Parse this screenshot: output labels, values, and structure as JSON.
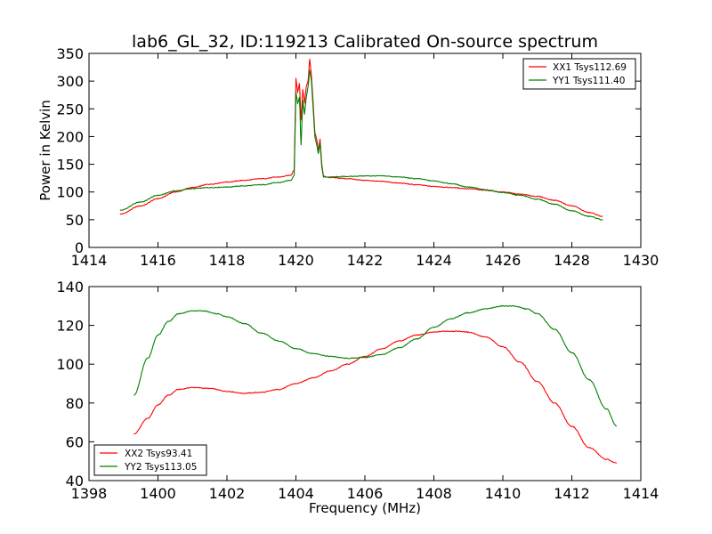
{
  "colors": {
    "red": "#ff0000",
    "green": "#008000",
    "frame": "#000000",
    "background": "#ffffff"
  },
  "chart_data": [
    {
      "type": "line",
      "title": "lab6_GL_32, ID:119213 Calibrated On-source spectrum",
      "xlabel": "",
      "ylabel": "Power in Kelvin",
      "xlim": [
        1414,
        1430
      ],
      "ylim": [
        0,
        350
      ],
      "xticks": [
        1414,
        1416,
        1418,
        1420,
        1422,
        1424,
        1426,
        1428,
        1430
      ],
      "yticks": [
        0,
        50,
        100,
        150,
        200,
        250,
        300,
        350
      ],
      "grid": false,
      "legend_position": "top-right",
      "series": [
        {
          "name": "XX1 Tsys112.69",
          "color": "#ff0000",
          "x": [
            1414.9,
            1415.5,
            1416.0,
            1416.5,
            1417.0,
            1417.5,
            1418.0,
            1418.5,
            1419.0,
            1419.5,
            1419.85,
            1419.95,
            1420.0,
            1420.05,
            1420.1,
            1420.15,
            1420.2,
            1420.25,
            1420.3,
            1420.35,
            1420.4,
            1420.45,
            1420.5,
            1420.55,
            1420.6,
            1420.65,
            1420.7,
            1420.75,
            1420.8,
            1421.0,
            1421.5,
            1422.0,
            1422.5,
            1423.0,
            1423.5,
            1424.0,
            1424.5,
            1425.0,
            1425.5,
            1426.0,
            1426.5,
            1427.0,
            1427.5,
            1428.0,
            1428.5,
            1428.9
          ],
          "y": [
            60,
            75,
            88,
            100,
            108,
            114,
            118,
            121,
            124,
            127,
            130,
            140,
            305,
            280,
            295,
            230,
            285,
            260,
            290,
            300,
            340,
            310,
            260,
            208,
            195,
            175,
            195,
            150,
            128,
            126,
            124,
            121,
            119,
            116,
            113,
            110,
            108,
            106,
            103,
            100,
            96,
            92,
            85,
            75,
            63,
            56
          ]
        },
        {
          "name": "YY1 Tsys111.40",
          "color": "#008000",
          "x": [
            1414.9,
            1415.5,
            1416.0,
            1416.5,
            1417.0,
            1417.5,
            1418.0,
            1418.5,
            1419.0,
            1419.5,
            1419.85,
            1419.95,
            1420.0,
            1420.05,
            1420.1,
            1420.15,
            1420.2,
            1420.25,
            1420.3,
            1420.35,
            1420.4,
            1420.45,
            1420.5,
            1420.55,
            1420.6,
            1420.65,
            1420.7,
            1420.75,
            1420.8,
            1421.0,
            1421.5,
            1422.0,
            1422.5,
            1423.0,
            1423.5,
            1424.0,
            1424.5,
            1425.0,
            1425.5,
            1426.0,
            1426.5,
            1427.0,
            1427.5,
            1428.0,
            1428.5,
            1428.9
          ],
          "y": [
            67,
            82,
            94,
            102,
            106,
            108,
            109,
            111,
            113,
            117,
            121,
            130,
            280,
            260,
            270,
            185,
            265,
            240,
            270,
            290,
            320,
            300,
            250,
            200,
            185,
            170,
            188,
            145,
            127,
            127,
            128,
            129,
            129,
            127,
            124,
            120,
            115,
            109,
            104,
            99,
            94,
            87,
            78,
            66,
            56,
            50
          ]
        }
      ]
    },
    {
      "type": "line",
      "title": "",
      "xlabel": "Frequency (MHz)",
      "ylabel": "",
      "xlim": [
        1398,
        1414
      ],
      "ylim": [
        40,
        140
      ],
      "xticks": [
        1398,
        1400,
        1402,
        1404,
        1406,
        1408,
        1410,
        1412,
        1414
      ],
      "yticks": [
        40,
        60,
        80,
        100,
        120,
        140
      ],
      "grid": false,
      "legend_position": "bottom-left",
      "series": [
        {
          "name": "XX2 Tsys93.41",
          "color": "#ff0000",
          "x": [
            1399.3,
            1399.7,
            1400.0,
            1400.3,
            1400.6,
            1401.0,
            1401.5,
            1402.0,
            1402.5,
            1403.0,
            1403.5,
            1404.0,
            1404.5,
            1405.0,
            1405.5,
            1406.0,
            1406.5,
            1407.0,
            1407.5,
            1408.0,
            1408.3,
            1408.7,
            1409.0,
            1409.5,
            1410.0,
            1410.5,
            1411.0,
            1411.5,
            1412.0,
            1412.5,
            1413.0,
            1413.3
          ],
          "y": [
            64,
            72,
            79,
            84,
            87,
            88,
            87.5,
            86,
            85,
            85.5,
            87,
            90,
            93,
            96.5,
            100,
            104,
            108,
            112,
            115,
            116.5,
            117,
            117,
            116.5,
            114,
            109,
            101,
            91,
            80,
            68,
            57,
            51,
            49
          ]
        },
        {
          "name": "YY2 Tsys113.05",
          "color": "#008000",
          "x": [
            1399.3,
            1399.7,
            1400.0,
            1400.3,
            1400.6,
            1401.0,
            1401.3,
            1401.7,
            1402.0,
            1402.5,
            1403.0,
            1403.5,
            1404.0,
            1404.5,
            1405.0,
            1405.5,
            1406.0,
            1406.5,
            1407.0,
            1407.5,
            1408.0,
            1408.5,
            1409.0,
            1409.5,
            1410.0,
            1410.3,
            1410.7,
            1411.0,
            1411.5,
            1412.0,
            1412.5,
            1413.0,
            1413.3
          ],
          "y": [
            84,
            103,
            115,
            122,
            126,
            127.5,
            127.5,
            126,
            124.5,
            121,
            116,
            112,
            108,
            105.5,
            104,
            103,
            103.5,
            105,
            108.5,
            113,
            119,
            123.5,
            126.5,
            128.5,
            130,
            130,
            128.5,
            126,
            118,
            106,
            92,
            77,
            68
          ]
        }
      ]
    }
  ]
}
